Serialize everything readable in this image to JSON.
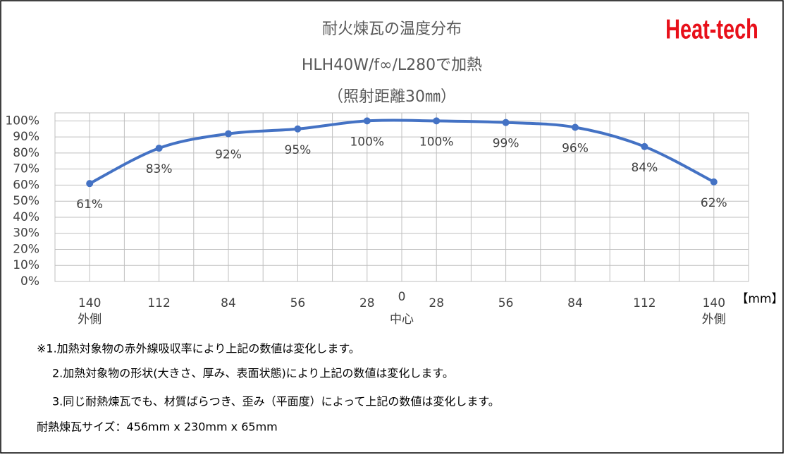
{
  "chart_data": {
    "type": "line",
    "title": "耐火煉瓦の温度分布",
    "subtitle": "HLH40W/f∞/L280で加熱",
    "subtitle2": "（照射距離30㎜）",
    "logo": "Heat-tech",
    "categories": [
      "140",
      "112",
      "84",
      "56",
      "28",
      "28",
      "56",
      "84",
      "112",
      "140"
    ],
    "x_sublabels": [
      "外側",
      null,
      null,
      null,
      null,
      null,
      null,
      null,
      null,
      "外側"
    ],
    "center_label": "0",
    "center_sublabel": "中心",
    "x_unit": "【mm】",
    "values": [
      61,
      83,
      92,
      95,
      100,
      100,
      99,
      96,
      84,
      62
    ],
    "value_labels": [
      "61%",
      "83%",
      "92%",
      "95%",
      "100%",
      "100%",
      "99%",
      "96%",
      "84%",
      "62%"
    ],
    "color": "#4472c4",
    "ylim": [
      0,
      105
    ],
    "yticks": [
      {
        "value": 0,
        "label": "0%"
      },
      {
        "value": 10,
        "label": "10%"
      },
      {
        "value": 20,
        "label": "20%"
      },
      {
        "value": 30,
        "label": "30%"
      },
      {
        "value": 40,
        "label": "40%"
      },
      {
        "value": 50,
        "label": "50%"
      },
      {
        "value": 60,
        "label": "60%"
      },
      {
        "value": 70,
        "label": "70%"
      },
      {
        "value": 80,
        "label": "80%"
      },
      {
        "value": 90,
        "label": "90%"
      },
      {
        "value": 100,
        "label": "100%"
      }
    ],
    "grid": true,
    "notes": [
      "※1.加熱対象物の赤外線吸収率により上記の数値は変化します。",
      "2.加熱対象物の形状(大きさ、厚み、表面状態)により上記の数値は変化します。",
      "3.同じ耐熱煉瓦でも、材質ばらつき、歪み（平面度）によって上記の数値は変化します。",
      "耐熱煉瓦サイズ：456mm x 230mm x 65mm"
    ]
  }
}
